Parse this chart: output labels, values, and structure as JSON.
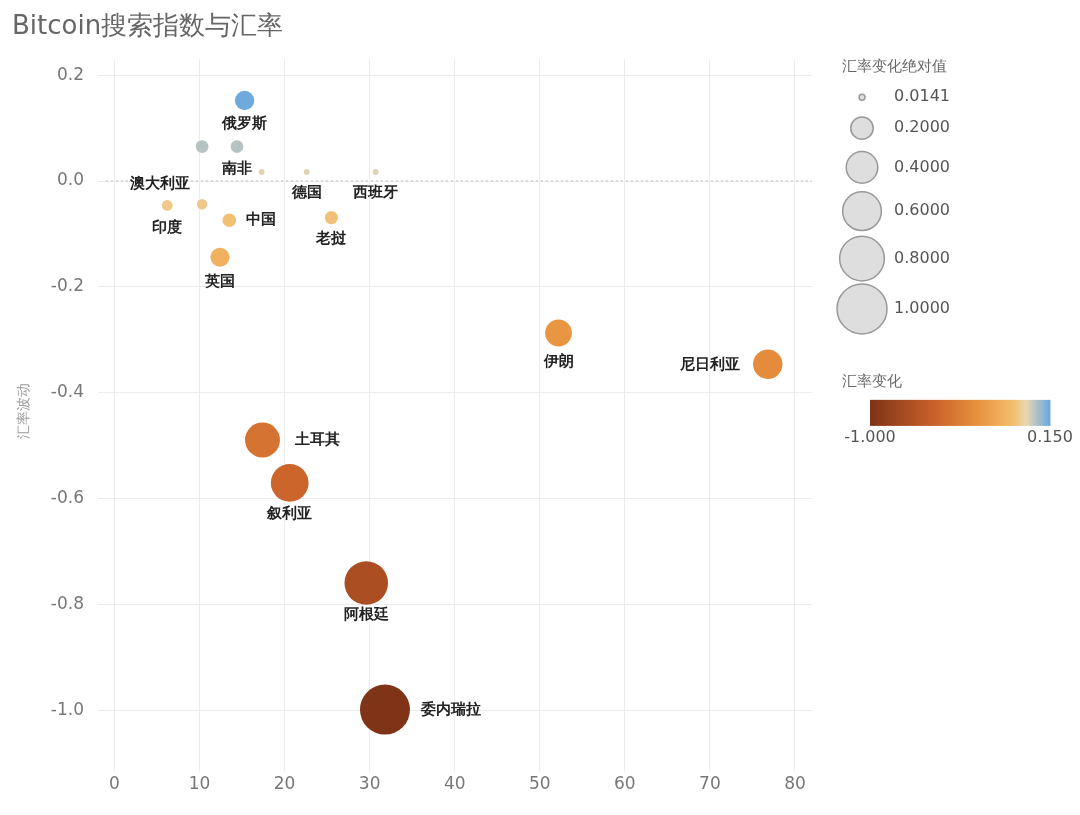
{
  "chart_data": {
    "type": "bubble",
    "title": "Bitcoin搜索指数与汇率",
    "ylabel": "汇率波动",
    "legend_title": "汇率变化绝对值",
    "clabel": "汇率变化",
    "x": [
      15.3,
      10.3,
      14.4,
      17.3,
      22.6,
      30.7,
      6.2,
      10.3,
      13.5,
      25.5,
      12.4,
      52.2,
      76.8,
      17.4,
      20.6,
      29.6,
      31.8
    ],
    "values": [
      0.152,
      0.065,
      0.065,
      0.017,
      0.017,
      0.017,
      -0.046,
      -0.044,
      -0.074,
      -0.069,
      -0.144,
      -0.287,
      -0.346,
      -0.489,
      -0.57,
      -0.759,
      -0.998
    ],
    "cvalues": [
      0.15,
      0.065,
      0.065,
      0.014,
      0.014,
      0.014,
      -0.046,
      -0.044,
      -0.074,
      -0.069,
      -0.144,
      -0.287,
      -0.346,
      -0.489,
      -0.57,
      -0.759,
      -1.0
    ],
    "sizes": [
      0.15,
      0.065,
      0.065,
      0.0141,
      0.0141,
      0.0141,
      0.046,
      0.044,
      0.074,
      0.069,
      0.144,
      0.287,
      0.346,
      0.489,
      0.57,
      0.759,
      1.0
    ],
    "size_legend": [
      {
        "value": 0.0141,
        "label": "0.0141"
      },
      {
        "value": 0.2,
        "label": "0.2000"
      },
      {
        "value": 0.4,
        "label": "0.4000"
      },
      {
        "value": 0.6,
        "label": "0.6000"
      },
      {
        "value": 0.8,
        "label": "0.8000"
      },
      {
        "value": 1,
        "label": "1.0000"
      }
    ],
    "clim": [
      -1,
      0.15
    ],
    "cticks": [
      {
        "value": -1,
        "label": "-1.000"
      },
      {
        "value": 0.15,
        "label": "0.150"
      }
    ],
    "xlim": [
      -1,
      82
    ],
    "xticks": [
      0,
      10,
      20,
      30,
      40,
      50,
      60,
      70,
      80
    ],
    "ylim": [
      -1.1,
      0.23
    ],
    "yticks": [
      {
        "value": 0.2,
        "label": "0.2"
      },
      {
        "value": 0,
        "label": "0.0"
      },
      {
        "value": -0.2,
        "label": "-0.2"
      },
      {
        "value": -0.4,
        "label": "-0.4"
      },
      {
        "value": -0.6,
        "label": "-0.6"
      },
      {
        "value": -0.8,
        "label": "-0.8"
      },
      {
        "value": -1,
        "label": "-1.0"
      }
    ],
    "grid": true,
    "marker": "circle",
    "ref_lines": [
      {
        "axis": "y",
        "value": 0,
        "line_style": "dotted",
        "color": "#bbbbbb"
      }
    ],
    "annotations": [
      {
        "text": "俄罗斯",
        "x": 15.3,
        "y": 0.152
      },
      {
        "text": "南非",
        "x": 14.4,
        "y": 0.065
      },
      {
        "text": "澳大利亚",
        "x": 10.3,
        "y": -0.044
      },
      {
        "text": "德国",
        "x": 22.6,
        "y": 0.017
      },
      {
        "text": "西班牙",
        "x": 30.7,
        "y": 0.017
      },
      {
        "text": "印度",
        "x": 6.2,
        "y": -0.046
      },
      {
        "text": "中国",
        "x": 13.5,
        "y": -0.074
      },
      {
        "text": "老挝",
        "x": 25.5,
        "y": -0.069
      },
      {
        "text": "英国",
        "x": 12.4,
        "y": -0.144
      },
      {
        "text": "伊朗",
        "x": 52.2,
        "y": -0.287
      },
      {
        "text": "尼日利亚",
        "x": 76.8,
        "y": -0.346
      },
      {
        "text": "土耳其",
        "x": 17.4,
        "y": -0.489
      },
      {
        "text": "叙利亚",
        "x": 20.6,
        "y": -0.57
      },
      {
        "text": "阿根廷",
        "x": 29.6,
        "y": -0.759
      },
      {
        "text": "委内瑞拉",
        "x": 31.8,
        "y": -0.998
      }
    ]
  }
}
